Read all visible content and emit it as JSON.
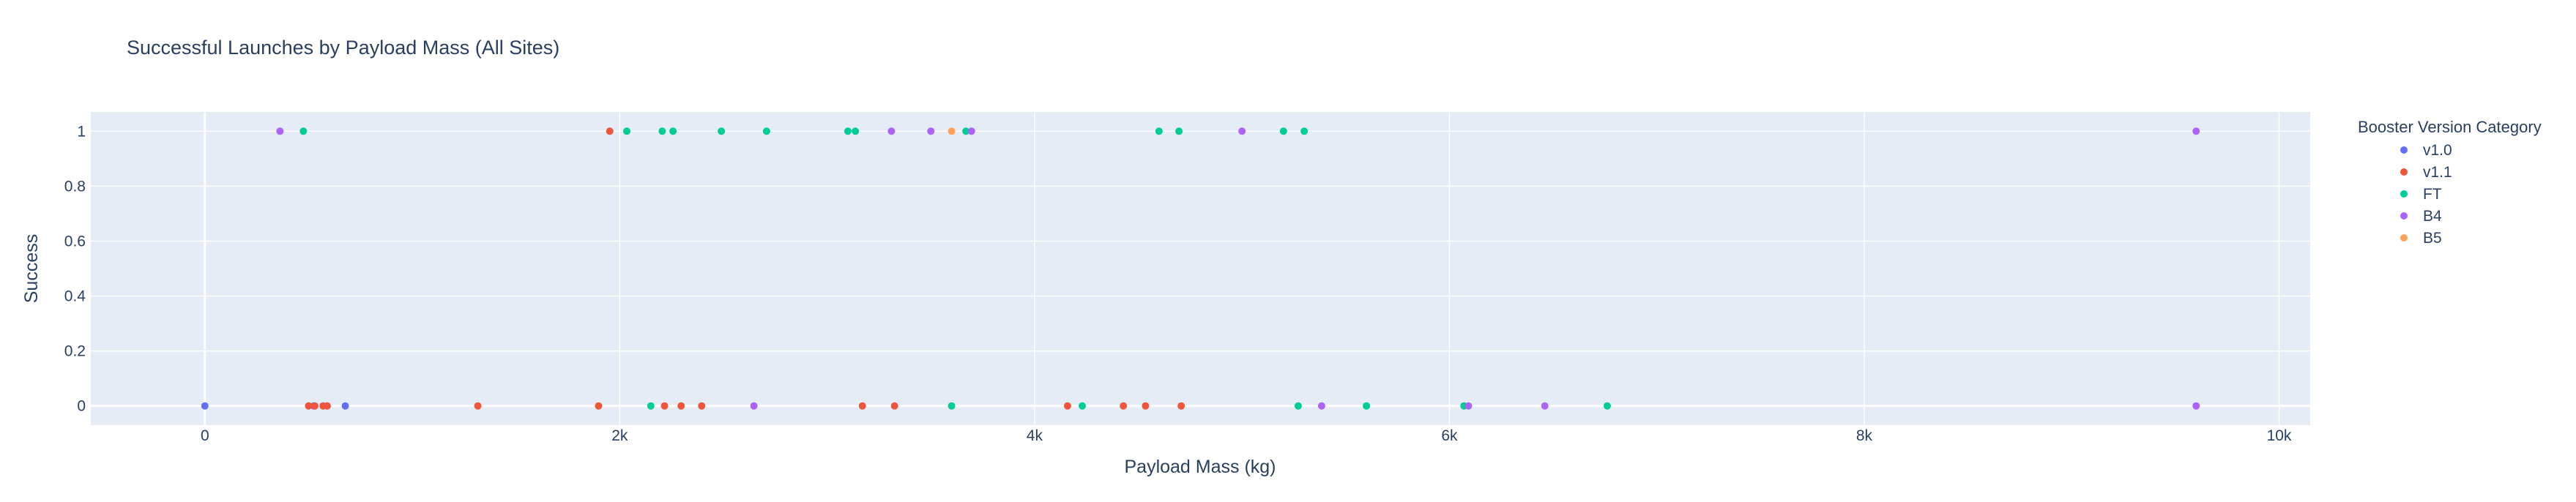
{
  "chart_data": {
    "type": "scatter",
    "title": "Successful Launches by Payload Mass (All Sites)",
    "xlabel": "Payload Mass (kg)",
    "ylabel": "Success",
    "xlim": [
      -550,
      10150
    ],
    "ylim": [
      -0.07,
      1.07
    ],
    "x_ticks": [
      0,
      2000,
      4000,
      6000,
      8000,
      10000
    ],
    "x_tick_labels": [
      "0",
      "2k",
      "4k",
      "6k",
      "8k",
      "10k"
    ],
    "y_ticks": [
      0,
      0.2,
      0.4,
      0.6,
      0.8,
      1
    ],
    "y_tick_labels": [
      "0",
      "0.2",
      "0.4",
      "0.6",
      "0.8",
      "1"
    ],
    "grid": true,
    "legend": {
      "title": "Booster Version Category",
      "placement": "right"
    },
    "series": [
      {
        "name": "v1.0",
        "color": "#636efa",
        "points": [
          [
            0,
            0
          ],
          [
            525,
            0
          ],
          [
            677,
            0
          ]
        ]
      },
      {
        "name": "v1.1",
        "color": "#ef553b",
        "points": [
          [
            500,
            0
          ],
          [
            530,
            0
          ],
          [
            570,
            0
          ],
          [
            590,
            0
          ],
          [
            1316,
            0
          ],
          [
            1898,
            0
          ],
          [
            1952,
            1
          ],
          [
            2216,
            0
          ],
          [
            2296,
            0
          ],
          [
            2395,
            0
          ],
          [
            3170,
            0
          ],
          [
            3325,
            0
          ],
          [
            4159,
            0
          ],
          [
            4428,
            0
          ],
          [
            4535,
            0
          ],
          [
            4707,
            0
          ]
        ]
      },
      {
        "name": "FT",
        "color": "#00cc96",
        "points": [
          [
            475,
            1
          ],
          [
            2034,
            1
          ],
          [
            2150,
            0
          ],
          [
            2205,
            1
          ],
          [
            2257,
            1
          ],
          [
            2490,
            1
          ],
          [
            2708,
            1
          ],
          [
            3100,
            1
          ],
          [
            3136,
            1
          ],
          [
            3600,
            0
          ],
          [
            3669,
            1
          ],
          [
            4230,
            0
          ],
          [
            4600,
            1
          ],
          [
            4696,
            1
          ],
          [
            5200,
            1
          ],
          [
            5271,
            0
          ],
          [
            5300,
            1
          ],
          [
            5600,
            0
          ],
          [
            6070,
            0
          ],
          [
            6761,
            0
          ]
        ]
      },
      {
        "name": "B4",
        "color": "#ab63fa",
        "points": [
          [
            362,
            1
          ],
          [
            2647,
            0
          ],
          [
            3310,
            1
          ],
          [
            3500,
            1
          ],
          [
            3696,
            1
          ],
          [
            5000,
            1
          ],
          [
            5384,
            0
          ],
          [
            6092,
            0
          ],
          [
            6460,
            0
          ],
          [
            9600,
            1
          ],
          [
            9600,
            0
          ]
        ]
      },
      {
        "name": "B5",
        "color": "#ffa15a",
        "points": [
          [
            3600,
            1
          ]
        ]
      }
    ]
  }
}
